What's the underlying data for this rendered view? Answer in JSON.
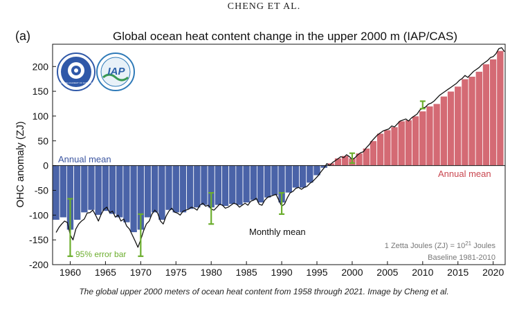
{
  "header": {
    "running_head": "CHENG ET AL."
  },
  "caption": "The global upper 2000 meters of ocean heat content from 1958 through 2021. Image by Cheng et al.",
  "logos": [
    {
      "name": "cas-logo",
      "text": "CHINESE ACADEMY OF SCIENCES"
    },
    {
      "name": "iap-logo",
      "text": "IAP"
    }
  ],
  "colors": {
    "negative_bar": "#4a63a8",
    "positive_bar": "#d46a74",
    "monthly_line": "#111111",
    "error_bar": "#6cae2e",
    "annual_negative_text": "#3b55a0",
    "annual_positive_text": "#c9464f",
    "note_text": "#777777"
  },
  "chart_data": {
    "type": "bar",
    "panel_label": "(a)",
    "title": "Global ocean heat content change in the upper 2000 m (IAP/CAS)",
    "xlabel": "",
    "ylabel": "OHC anomaly (ZJ)",
    "xlim": [
      1957.5,
      2021.7
    ],
    "ylim": [
      -200,
      245
    ],
    "x_ticks": [
      1960,
      1965,
      1970,
      1975,
      1980,
      1985,
      1990,
      1995,
      2000,
      2005,
      2010,
      2015,
      2020
    ],
    "y_ticks": [
      -200,
      -150,
      -100,
      -50,
      0,
      50,
      100,
      150,
      200
    ],
    "grid": false,
    "legend": "none",
    "years": [
      1958,
      1959,
      1960,
      1961,
      1962,
      1963,
      1964,
      1965,
      1966,
      1967,
      1968,
      1969,
      1970,
      1971,
      1972,
      1973,
      1974,
      1975,
      1976,
      1977,
      1978,
      1979,
      1980,
      1981,
      1982,
      1983,
      1984,
      1985,
      1986,
      1987,
      1988,
      1989,
      1990,
      1991,
      1992,
      1993,
      1994,
      1995,
      1996,
      1997,
      1998,
      1999,
      2000,
      2001,
      2002,
      2003,
      2004,
      2005,
      2006,
      2007,
      2008,
      2009,
      2010,
      2011,
      2012,
      2013,
      2014,
      2015,
      2016,
      2017,
      2018,
      2019,
      2020,
      2021
    ],
    "annual_mean": [
      -110,
      -105,
      -130,
      -110,
      -95,
      -90,
      -100,
      -92,
      -98,
      -105,
      -115,
      -135,
      -130,
      -105,
      -95,
      -110,
      -90,
      -95,
      -95,
      -88,
      -85,
      -80,
      -85,
      -80,
      -82,
      -78,
      -80,
      -75,
      -70,
      -75,
      -65,
      -60,
      -75,
      -55,
      -45,
      -45,
      -35,
      -20,
      -5,
      5,
      15,
      20,
      15,
      25,
      35,
      50,
      65,
      72,
      78,
      90,
      92,
      100,
      110,
      120,
      125,
      140,
      150,
      160,
      175,
      180,
      190,
      205,
      215,
      232
    ],
    "monthly_mean": [
      [
        1958.0,
        -135
      ],
      [
        1958.4,
        -125
      ],
      [
        1958.8,
        -118
      ],
      [
        1959.2,
        -112
      ],
      [
        1959.6,
        -115
      ],
      [
        1960.0,
        -140
      ],
      [
        1960.4,
        -150
      ],
      [
        1960.8,
        -128
      ],
      [
        1961.2,
        -118
      ],
      [
        1961.6,
        -112
      ],
      [
        1962.0,
        -108
      ],
      [
        1962.4,
        -96
      ],
      [
        1962.8,
        -95
      ],
      [
        1963.2,
        -90
      ],
      [
        1963.6,
        -100
      ],
      [
        1964.0,
        -112
      ],
      [
        1964.4,
        -98
      ],
      [
        1964.8,
        -88
      ],
      [
        1965.2,
        -84
      ],
      [
        1965.6,
        -95
      ],
      [
        1966.0,
        -92
      ],
      [
        1966.4,
        -104
      ],
      [
        1966.8,
        -100
      ],
      [
        1967.2,
        -112
      ],
      [
        1967.6,
        -108
      ],
      [
        1968.0,
        -122
      ],
      [
        1968.4,
        -128
      ],
      [
        1968.8,
        -140
      ],
      [
        1969.2,
        -152
      ],
      [
        1969.6,
        -165
      ],
      [
        1970.0,
        -150
      ],
      [
        1970.4,
        -132
      ],
      [
        1970.8,
        -118
      ],
      [
        1971.2,
        -112
      ],
      [
        1971.6,
        -98
      ],
      [
        1972.0,
        -90
      ],
      [
        1972.4,
        -96
      ],
      [
        1972.8,
        -112
      ],
      [
        1973.2,
        -118
      ],
      [
        1973.6,
        -102
      ],
      [
        1974.0,
        -92
      ],
      [
        1974.4,
        -86
      ],
      [
        1974.8,
        -94
      ],
      [
        1975.2,
        -96
      ],
      [
        1975.6,
        -100
      ],
      [
        1976.0,
        -92
      ],
      [
        1976.4,
        -90
      ],
      [
        1976.8,
        -88
      ],
      [
        1977.2,
        -84
      ],
      [
        1977.6,
        -86
      ],
      [
        1978.0,
        -90
      ],
      [
        1978.4,
        -80
      ],
      [
        1978.8,
        -76
      ],
      [
        1979.2,
        -82
      ],
      [
        1979.6,
        -80
      ],
      [
        1980.0,
        -88
      ],
      [
        1980.4,
        -90
      ],
      [
        1980.8,
        -84
      ],
      [
        1981.2,
        -78
      ],
      [
        1981.6,
        -80
      ],
      [
        1982.0,
        -86
      ],
      [
        1982.4,
        -84
      ],
      [
        1982.8,
        -80
      ],
      [
        1983.2,
        -76
      ],
      [
        1983.6,
        -78
      ],
      [
        1984.0,
        -84
      ],
      [
        1984.4,
        -80
      ],
      [
        1984.8,
        -76
      ],
      [
        1985.2,
        -80
      ],
      [
        1985.6,
        -72
      ],
      [
        1986.0,
        -70
      ],
      [
        1986.4,
        -66
      ],
      [
        1986.8,
        -78
      ],
      [
        1987.2,
        -80
      ],
      [
        1987.6,
        -70
      ],
      [
        1988.0,
        -64
      ],
      [
        1988.4,
        -62
      ],
      [
        1988.8,
        -60
      ],
      [
        1989.2,
        -58
      ],
      [
        1989.6,
        -70
      ],
      [
        1990.0,
        -82
      ],
      [
        1990.4,
        -78
      ],
      [
        1990.8,
        -65
      ],
      [
        1991.2,
        -55
      ],
      [
        1991.6,
        -52
      ],
      [
        1992.0,
        -46
      ],
      [
        1992.4,
        -44
      ],
      [
        1992.8,
        -48
      ],
      [
        1993.2,
        -44
      ],
      [
        1993.6,
        -42
      ],
      [
        1994.0,
        -36
      ],
      [
        1994.4,
        -32
      ],
      [
        1994.8,
        -26
      ],
      [
        1995.2,
        -20
      ],
      [
        1995.6,
        -12
      ],
      [
        1996.0,
        -5
      ],
      [
        1996.4,
        4
      ],
      [
        1996.8,
        0
      ],
      [
        1997.2,
        6
      ],
      [
        1997.6,
        10
      ],
      [
        1998.0,
        14
      ],
      [
        1998.4,
        18
      ],
      [
        1998.8,
        16
      ],
      [
        1999.2,
        22
      ],
      [
        1999.6,
        18
      ],
      [
        2000.0,
        12
      ],
      [
        2000.4,
        16
      ],
      [
        2000.8,
        22
      ],
      [
        2001.2,
        26
      ],
      [
        2001.6,
        28
      ],
      [
        2002.0,
        36
      ],
      [
        2002.4,
        42
      ],
      [
        2002.8,
        50
      ],
      [
        2003.2,
        56
      ],
      [
        2003.6,
        62
      ],
      [
        2004.0,
        66
      ],
      [
        2004.4,
        70
      ],
      [
        2004.8,
        72
      ],
      [
        2005.2,
        74
      ],
      [
        2005.6,
        80
      ],
      [
        2006.0,
        78
      ],
      [
        2006.4,
        84
      ],
      [
        2006.8,
        90
      ],
      [
        2007.2,
        92
      ],
      [
        2007.6,
        94
      ],
      [
        2008.0,
        90
      ],
      [
        2008.4,
        96
      ],
      [
        2008.8,
        100
      ],
      [
        2009.2,
        104
      ],
      [
        2009.6,
        112
      ],
      [
        2010.0,
        116
      ],
      [
        2010.4,
        118
      ],
      [
        2010.8,
        124
      ],
      [
        2011.2,
        126
      ],
      [
        2011.6,
        130
      ],
      [
        2012.0,
        136
      ],
      [
        2012.4,
        142
      ],
      [
        2012.8,
        146
      ],
      [
        2013.2,
        150
      ],
      [
        2013.6,
        154
      ],
      [
        2014.0,
        158
      ],
      [
        2014.4,
        162
      ],
      [
        2014.8,
        166
      ],
      [
        2015.2,
        172
      ],
      [
        2015.6,
        176
      ],
      [
        2016.0,
        182
      ],
      [
        2016.4,
        178
      ],
      [
        2016.8,
        184
      ],
      [
        2017.2,
        190
      ],
      [
        2017.6,
        194
      ],
      [
        2018.0,
        198
      ],
      [
        2018.4,
        204
      ],
      [
        2018.8,
        208
      ],
      [
        2019.2,
        212
      ],
      [
        2019.6,
        218
      ],
      [
        2020.0,
        220
      ],
      [
        2020.4,
        226
      ],
      [
        2020.8,
        236
      ],
      [
        2021.2,
        238
      ],
      [
        2021.6,
        230
      ]
    ],
    "error_bars": [
      {
        "x": 1960,
        "lo": -183,
        "hi": -67
      },
      {
        "x": 1970,
        "lo": -183,
        "hi": -98
      },
      {
        "x": 1980,
        "lo": -118,
        "hi": -55
      },
      {
        "x": 1990,
        "lo": -98,
        "hi": -55
      },
      {
        "x": 2000,
        "lo": 5,
        "hi": 25
      },
      {
        "x": 2010,
        "lo": 115,
        "hi": 130
      }
    ],
    "annotations": {
      "annual_mean_left": "Annual mean",
      "annual_mean_right": "Annual mean",
      "monthly_mean": "Monthly mean",
      "error_bar": "95% error bar",
      "unit_note_prefix": "1 Zetta Joules (ZJ) = 10",
      "unit_note_exp": "21",
      "unit_note_suffix": " Joules",
      "baseline_note": "Baseline 1981-2010"
    }
  }
}
